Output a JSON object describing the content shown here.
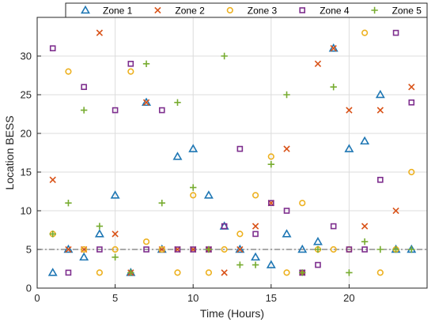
{
  "chart_data": {
    "type": "scatter",
    "title": "",
    "xlabel": "Time (Hours)",
    "ylabel": "Location BESS",
    "xlim": [
      0,
      25
    ],
    "ylim": [
      0,
      35
    ],
    "xticks": [
      0,
      5,
      10,
      15,
      20
    ],
    "yticks": [
      0,
      5,
      10,
      15,
      20,
      25,
      30
    ],
    "grid": true,
    "legend_position": "top",
    "reference_line": {
      "y": 5,
      "style": "dash-dot",
      "color": "#555555"
    },
    "series": [
      {
        "name": "Zone 1",
        "marker": "triangle",
        "color": "#1f77b4",
        "x": [
          1,
          2,
          3,
          4,
          5,
          6,
          7,
          8,
          9,
          10,
          11,
          12,
          13,
          14,
          15,
          16,
          17,
          18,
          19,
          20,
          21,
          22,
          23,
          24
        ],
        "y": [
          2,
          5,
          4,
          7,
          12,
          2,
          24,
          5,
          17,
          18,
          12,
          8,
          5,
          4,
          3,
          7,
          5,
          6,
          31,
          18,
          19,
          25,
          5,
          5
        ]
      },
      {
        "name": "Zone 2",
        "marker": "x",
        "color": "#d95319",
        "x": [
          1,
          2,
          3,
          4,
          5,
          6,
          7,
          8,
          9,
          10,
          11,
          12,
          13,
          14,
          15,
          16,
          17,
          18,
          19,
          20,
          21,
          22,
          23,
          24
        ],
        "y": [
          14,
          5,
          5,
          33,
          7,
          2,
          24,
          5,
          5,
          5,
          5,
          2,
          5,
          8,
          11,
          18,
          2,
          29,
          31,
          23,
          8,
          23,
          10,
          26
        ]
      },
      {
        "name": "Zone 3",
        "marker": "circle",
        "color": "#edb120",
        "x": [
          1,
          2,
          3,
          4,
          5,
          6,
          7,
          8,
          9,
          10,
          11,
          12,
          13,
          14,
          15,
          16,
          17,
          18,
          19,
          20,
          21,
          22,
          23,
          24
        ],
        "y": [
          7,
          28,
          5,
          2,
          5,
          28,
          6,
          5,
          2,
          12,
          2,
          5,
          7,
          12,
          17,
          2,
          11,
          5,
          5,
          5,
          33,
          2,
          5,
          15
        ]
      },
      {
        "name": "Zone 4",
        "marker": "square",
        "color": "#7e2f8e",
        "x": [
          1,
          2,
          3,
          4,
          5,
          6,
          7,
          8,
          9,
          10,
          11,
          12,
          13,
          14,
          15,
          16,
          17,
          18,
          19,
          20,
          21,
          22,
          23,
          24
        ],
        "y": [
          31,
          2,
          26,
          5,
          23,
          29,
          5,
          23,
          5,
          5,
          5,
          8,
          18,
          7,
          11,
          10,
          2,
          3,
          8,
          5,
          5,
          14,
          33,
          24
        ]
      },
      {
        "name": "Zone 5",
        "marker": "plus",
        "color": "#77ac30",
        "x": [
          1,
          2,
          3,
          4,
          5,
          6,
          7,
          8,
          9,
          10,
          11,
          12,
          13,
          14,
          15,
          16,
          17,
          18,
          19,
          20,
          21,
          22,
          23,
          24
        ],
        "y": [
          7,
          11,
          23,
          8,
          4,
          2,
          29,
          11,
          24,
          13,
          5,
          30,
          3,
          3,
          16,
          25,
          2,
          5,
          26,
          2,
          6,
          5,
          5,
          5
        ]
      }
    ]
  }
}
